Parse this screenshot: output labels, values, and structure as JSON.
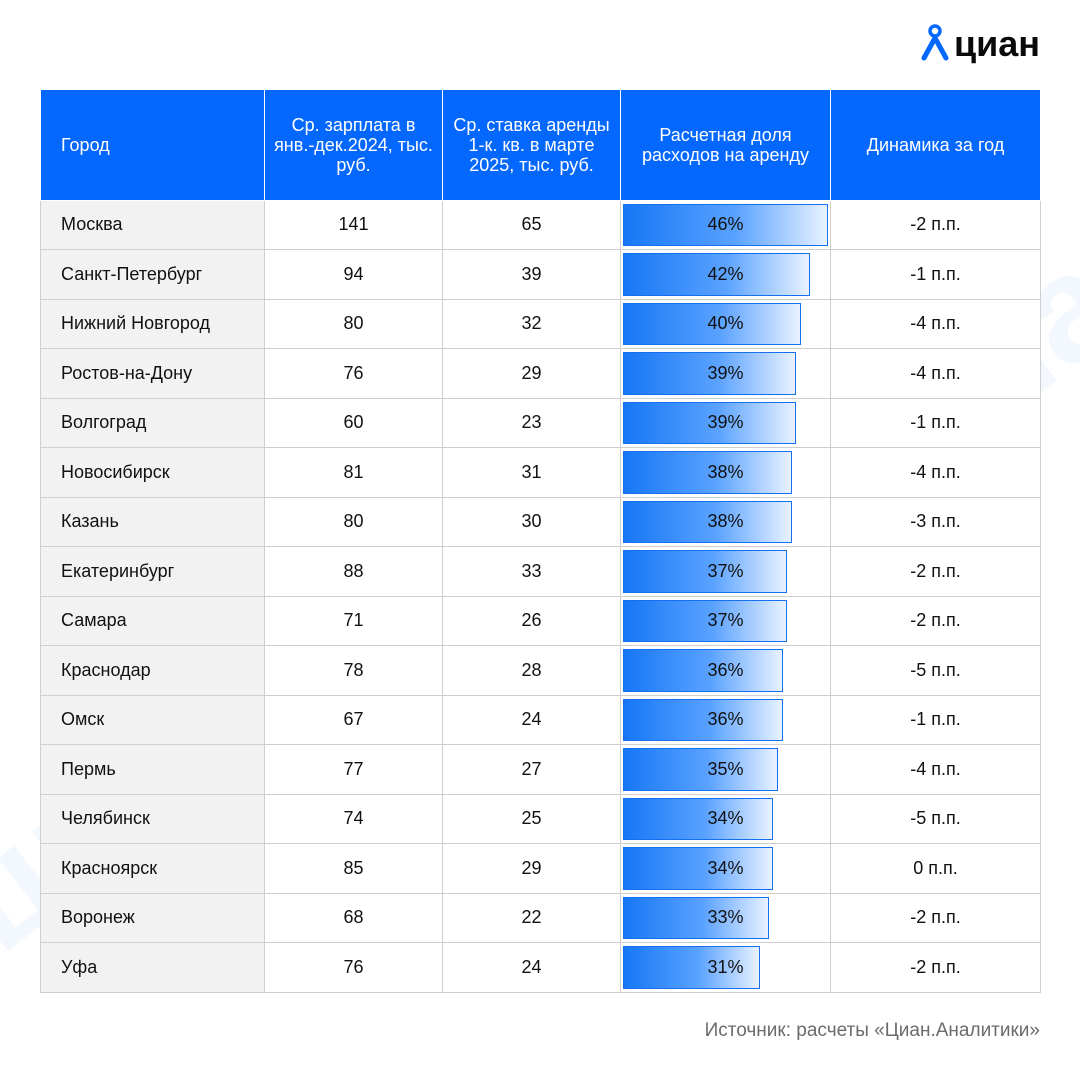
{
  "brand": {
    "logo_text": "циан",
    "logo_icon": "pin-person-icon",
    "accent_color": "#0468ff"
  },
  "table": {
    "headers": [
      "Город",
      "Ср. зарплата в янв.-дек.2024, тыс. руб.",
      "Ср. ставка аренды 1-к. кв. в марте 2025, тыс. руб.",
      "Расчетная доля расходов на аренду",
      "Динамика за год"
    ],
    "rows": [
      {
        "city": "Москва",
        "salary": "141",
        "rent": "65",
        "share": "46%",
        "share_value": 46,
        "change": "-2 п.п."
      },
      {
        "city": "Санкт-Петербург",
        "salary": "94",
        "rent": "39",
        "share": "42%",
        "share_value": 42,
        "change": "-1 п.п."
      },
      {
        "city": "Нижний Новгород",
        "salary": "80",
        "rent": "32",
        "share": "40%",
        "share_value": 40,
        "change": "-4 п.п."
      },
      {
        "city": "Ростов-на-Дону",
        "salary": "76",
        "rent": "29",
        "share": "39%",
        "share_value": 39,
        "change": "-4 п.п."
      },
      {
        "city": "Волгоград",
        "salary": "60",
        "rent": "23",
        "share": "39%",
        "share_value": 39,
        "change": "-1 п.п."
      },
      {
        "city": "Новосибирск",
        "salary": "81",
        "rent": "31",
        "share": "38%",
        "share_value": 38,
        "change": "-4 п.п."
      },
      {
        "city": "Казань",
        "salary": "80",
        "rent": "30",
        "share": "38%",
        "share_value": 38,
        "change": "-3 п.п."
      },
      {
        "city": "Екатеринбург",
        "salary": "88",
        "rent": "33",
        "share": "37%",
        "share_value": 37,
        "change": "-2 п.п."
      },
      {
        "city": "Самара",
        "salary": "71",
        "rent": "26",
        "share": "37%",
        "share_value": 37,
        "change": "-2 п.п."
      },
      {
        "city": "Краснодар",
        "salary": "78",
        "rent": "28",
        "share": "36%",
        "share_value": 36,
        "change": "-5 п.п."
      },
      {
        "city": "Омск",
        "salary": "67",
        "rent": "24",
        "share": "36%",
        "share_value": 36,
        "change": "-1 п.п."
      },
      {
        "city": "Пермь",
        "salary": "77",
        "rent": "27",
        "share": "35%",
        "share_value": 35,
        "change": "-4 п.п."
      },
      {
        "city": "Челябинск",
        "salary": "74",
        "rent": "25",
        "share": "34%",
        "share_value": 34,
        "change": "-5 п.п."
      },
      {
        "city": "Красноярск",
        "salary": "85",
        "rent": "29",
        "share": "34%",
        "share_value": 34,
        "change": "0 п.п."
      },
      {
        "city": "Воронеж",
        "salary": "68",
        "rent": "22",
        "share": "33%",
        "share_value": 33,
        "change": "-2 п.п."
      },
      {
        "city": "Уфа",
        "salary": "76",
        "rent": "24",
        "share": "31%",
        "share_value": 31,
        "change": "-2 п.п."
      }
    ]
  },
  "source": "Источник: расчеты «Циан.Аналитики»"
}
